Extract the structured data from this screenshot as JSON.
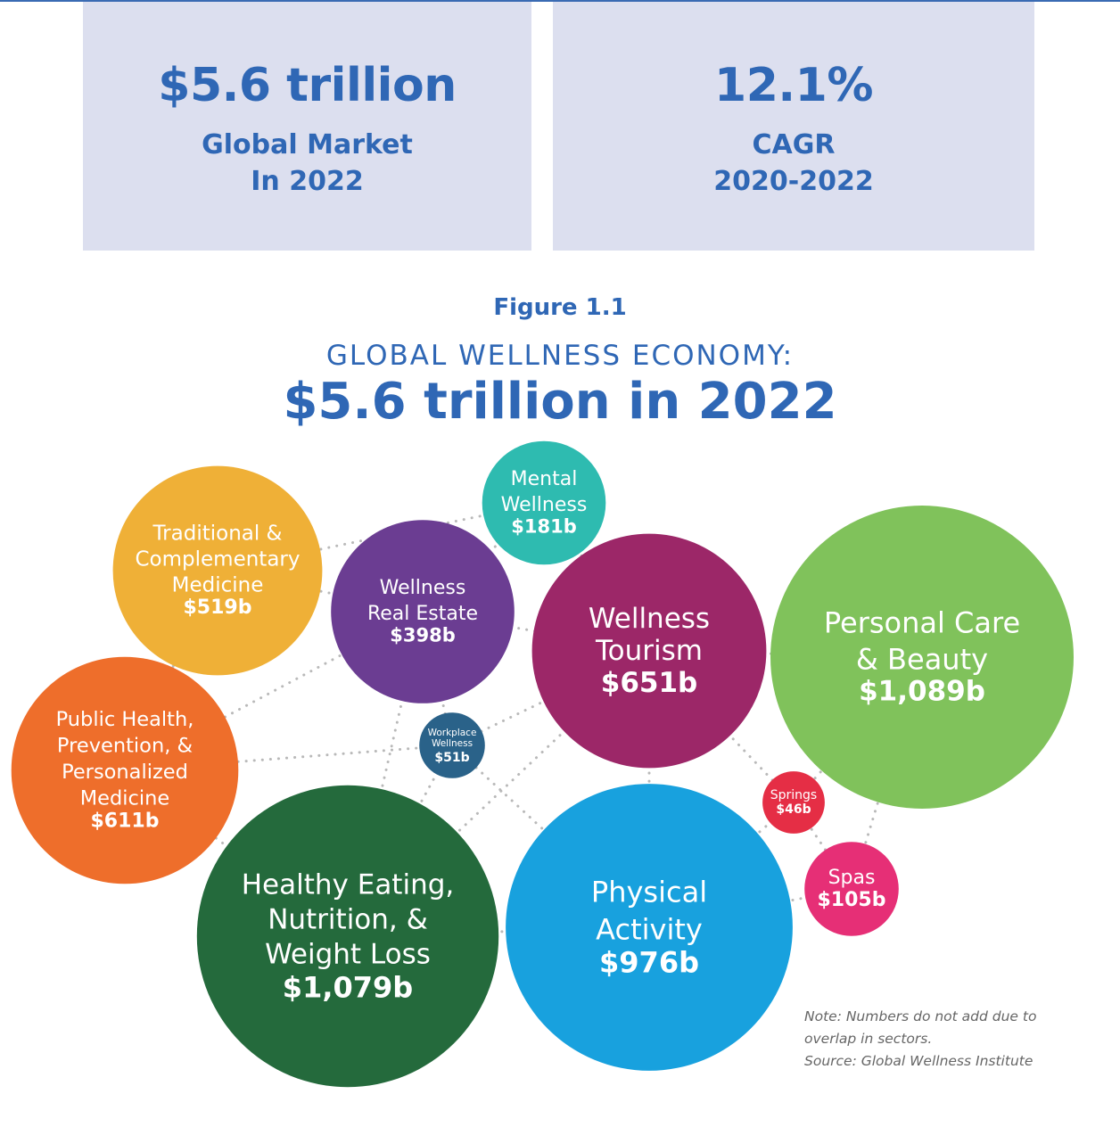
{
  "stats": {
    "market": {
      "value": "$5.6 trillion",
      "label_line1": "Global Market",
      "label_line2": "In 2022"
    },
    "growth": {
      "value": "12.1%",
      "label_line1": "CAGR",
      "label_line2": "2020-2022"
    }
  },
  "figure": {
    "label": "Figure 1.1",
    "title": "GLOBAL WELLNESS ECONOMY:",
    "subtitle": "$5.6 trillion in 2022"
  },
  "chart_data": {
    "type": "bubble",
    "unit": "billions USD",
    "title": "GLOBAL WELLNESS ECONOMY: $5.6 trillion in 2022",
    "total": "$5.6 trillion",
    "sectors": [
      {
        "id": "traditional",
        "name_lines": [
          "Traditional &",
          "Complementary",
          "Medicine"
        ],
        "value": 519,
        "value_label": "$519b",
        "color": "#efb037"
      },
      {
        "id": "real-estate",
        "name_lines": [
          "Wellness",
          "Real Estate"
        ],
        "value": 398,
        "value_label": "$398b",
        "color": "#6b3d92"
      },
      {
        "id": "mental",
        "name_lines": [
          "Mental",
          "Wellness"
        ],
        "value": 181,
        "value_label": "$181b",
        "color": "#2ebbb0"
      },
      {
        "id": "tourism",
        "name_lines": [
          "Wellness",
          "Tourism"
        ],
        "value": 651,
        "value_label": "$651b",
        "color": "#9c2768"
      },
      {
        "id": "personal-care",
        "name_lines": [
          "Personal Care",
          "& Beauty"
        ],
        "value": 1089,
        "value_label": "$1,089b",
        "color": "#80c25b"
      },
      {
        "id": "public-health",
        "name_lines": [
          "Public Health,",
          "Prevention, &",
          "Personalized",
          "Medicine"
        ],
        "value": 611,
        "value_label": "$611b",
        "color": "#ee6e2b"
      },
      {
        "id": "workplace",
        "name_lines": [
          "Workplace",
          "Wellness"
        ],
        "value": 51,
        "value_label": "$51b",
        "color": "#2a6289"
      },
      {
        "id": "healthy-eating",
        "name_lines": [
          "Healthy Eating,",
          "Nutrition, &",
          "Weight Loss"
        ],
        "value": 1079,
        "value_label": "$1,079b",
        "color": "#246a3c"
      },
      {
        "id": "physical-activity",
        "name_lines": [
          "Physical",
          "Activity"
        ],
        "value": 976,
        "value_label": "$976b",
        "color": "#18a1de"
      },
      {
        "id": "springs",
        "name_lines": [
          "Springs"
        ],
        "value": 46,
        "value_label": "$46b",
        "color": "#e52e45"
      },
      {
        "id": "spas",
        "name_lines": [
          "Spas"
        ],
        "value": 105,
        "value_label": "$105b",
        "color": "#e62f76"
      }
    ]
  },
  "notes": {
    "line1": "Note: Numbers do not add due to",
    "line2": "overlap in sectors.",
    "line3": "Source: Global Wellness Institute"
  }
}
